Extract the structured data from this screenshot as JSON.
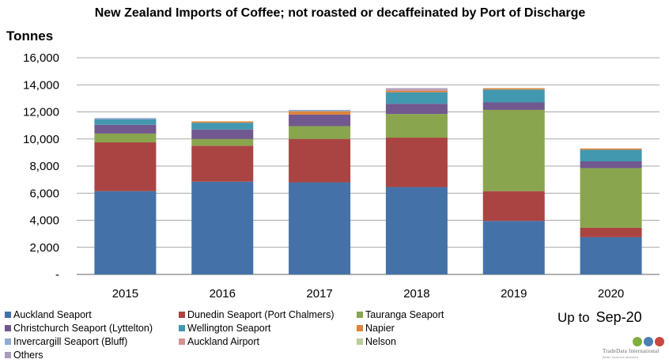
{
  "title": "New Zealand Imports of Coffee; not roasted or decaffeinated by Port of Discharge",
  "y_unit": "Tonnes",
  "note": {
    "prefix": "Up to",
    "period": "Sep-20"
  },
  "brand": {
    "name": "TradeData International",
    "tagline": "Better business decisions",
    "icon": "globe-icons"
  },
  "colors": {
    "Auckland Seaport": "#4472a8",
    "Dunedin Seaport (Port Chalmers)": "#aa4442",
    "Tauranga Seaport": "#89a54e",
    "Christchurch Seaport (Lyttelton)": "#71588f",
    "Wellington Seaport": "#4298af",
    "Napier": "#db843d",
    "Invercargill Seaport (Bluff)": "#93a9cf",
    "Auckland Airport": "#d19392",
    "Nelson": "#b9cd96",
    "Others": "#a99bbd"
  },
  "chart_data": {
    "type": "bar",
    "stacked": true,
    "title": "New Zealand Imports of Coffee; not roasted or decaffeinated by Port of Discharge",
    "ylabel": "Tonnes",
    "ylim": [
      0,
      16000
    ],
    "yticks": [
      "-",
      "2,000",
      "4,000",
      "6,000",
      "8,000",
      "10,000",
      "12,000",
      "14,000",
      "16,000"
    ],
    "grid": true,
    "legend": "bottom",
    "categories": [
      "2015",
      "2016",
      "2017",
      "2018",
      "2019",
      "2020"
    ],
    "series": [
      {
        "name": "Auckland Seaport",
        "values": [
          6150,
          6850,
          6800,
          6450,
          3950,
          2750
        ]
      },
      {
        "name": "Dunedin Seaport (Port Chalmers)",
        "values": [
          3600,
          2650,
          3200,
          3650,
          2200,
          700
        ]
      },
      {
        "name": "Tauranga Seaport",
        "values": [
          650,
          500,
          950,
          1750,
          6000,
          4400
        ]
      },
      {
        "name": "Christchurch Seaport (Lyttelton)",
        "values": [
          650,
          700,
          850,
          750,
          550,
          500
        ]
      },
      {
        "name": "Wellington Seaport",
        "values": [
          400,
          500,
          0,
          850,
          950,
          850
        ]
      },
      {
        "name": "Napier",
        "values": [
          0,
          100,
          250,
          100,
          100,
          100
        ]
      },
      {
        "name": "Invercargill Seaport (Bluff)",
        "values": [
          100,
          0,
          100,
          0,
          0,
          0
        ]
      },
      {
        "name": "Auckland Airport",
        "values": [
          0,
          0,
          0,
          100,
          0,
          0
        ]
      },
      {
        "name": "Nelson",
        "values": [
          0,
          0,
          0,
          0,
          0,
          0
        ]
      },
      {
        "name": "Others",
        "values": [
          0,
          0,
          0,
          100,
          0,
          0
        ]
      }
    ]
  }
}
